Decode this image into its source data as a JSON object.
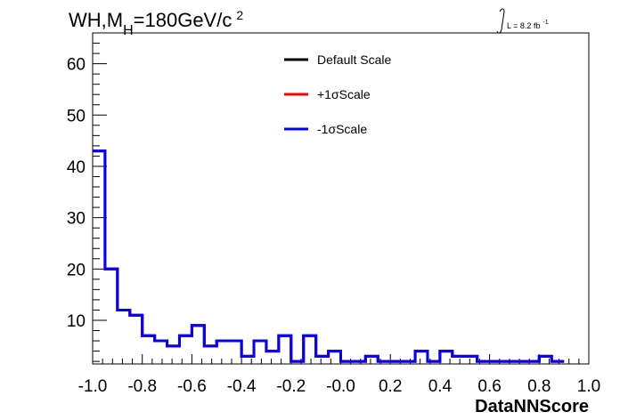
{
  "chart_data": {
    "type": "histogram",
    "title_main": "WH,M",
    "title_sub": "H",
    "title_rest": "=180GeV/c",
    "title_sup": "2",
    "lumi_text": "L = 8.2 fb",
    "lumi_sup": "-1",
    "xlabel": "DataNNScore",
    "ylabel": "",
    "xlim": [
      -1.0,
      1.0
    ],
    "ylim": [
      1.5,
      66
    ],
    "x_ticks": [
      "-1.0",
      "-0.8",
      "-0.6",
      "-0.4",
      "-0.2",
      "-0.0",
      "0.2",
      "0.4",
      "0.6",
      "0.8",
      "1.0"
    ],
    "x_tick_values": [
      -1.0,
      -0.8,
      -0.6,
      -0.4,
      -0.2,
      0.0,
      0.2,
      0.4,
      0.6,
      0.8,
      1.0
    ],
    "y_ticks": [
      "10",
      "20",
      "30",
      "40",
      "50",
      "60"
    ],
    "y_tick_values": [
      10,
      20,
      30,
      40,
      50,
      60
    ],
    "bin_edges_start": -1.0,
    "bin_width": 0.05,
    "series": [
      {
        "name": "Default Scale",
        "color": "#000000",
        "values": [
          43,
          20,
          12,
          11,
          7,
          6,
          5,
          7,
          9,
          5,
          6,
          6,
          3,
          6,
          4,
          7,
          2,
          7,
          3,
          4,
          2,
          2,
          3,
          2,
          2,
          2,
          4,
          2,
          4,
          3,
          3,
          2,
          2,
          2,
          2,
          2,
          3,
          2
        ]
      },
      {
        "name": "+1σScale",
        "color": "#ff0000",
        "values": [
          43,
          20,
          12,
          11,
          7,
          6,
          5,
          7,
          9,
          5,
          6,
          6,
          3,
          6,
          4,
          7,
          2,
          7,
          3,
          4,
          2,
          2,
          3,
          2,
          2,
          2,
          4,
          2,
          4,
          3,
          3,
          2,
          2,
          2,
          2,
          2,
          3,
          2
        ]
      },
      {
        "name": "-1σScale",
        "color": "#0000ff",
        "values": [
          43,
          20,
          12,
          11,
          7,
          6,
          5,
          7,
          9,
          5,
          6,
          6,
          3,
          6,
          4,
          7,
          2,
          7,
          3,
          4,
          2,
          2,
          3,
          2,
          2,
          2,
          4,
          2,
          4,
          3,
          3,
          2,
          2,
          2,
          2,
          2,
          3,
          2
        ]
      }
    ],
    "legend_position": "top-center",
    "grid": false
  }
}
